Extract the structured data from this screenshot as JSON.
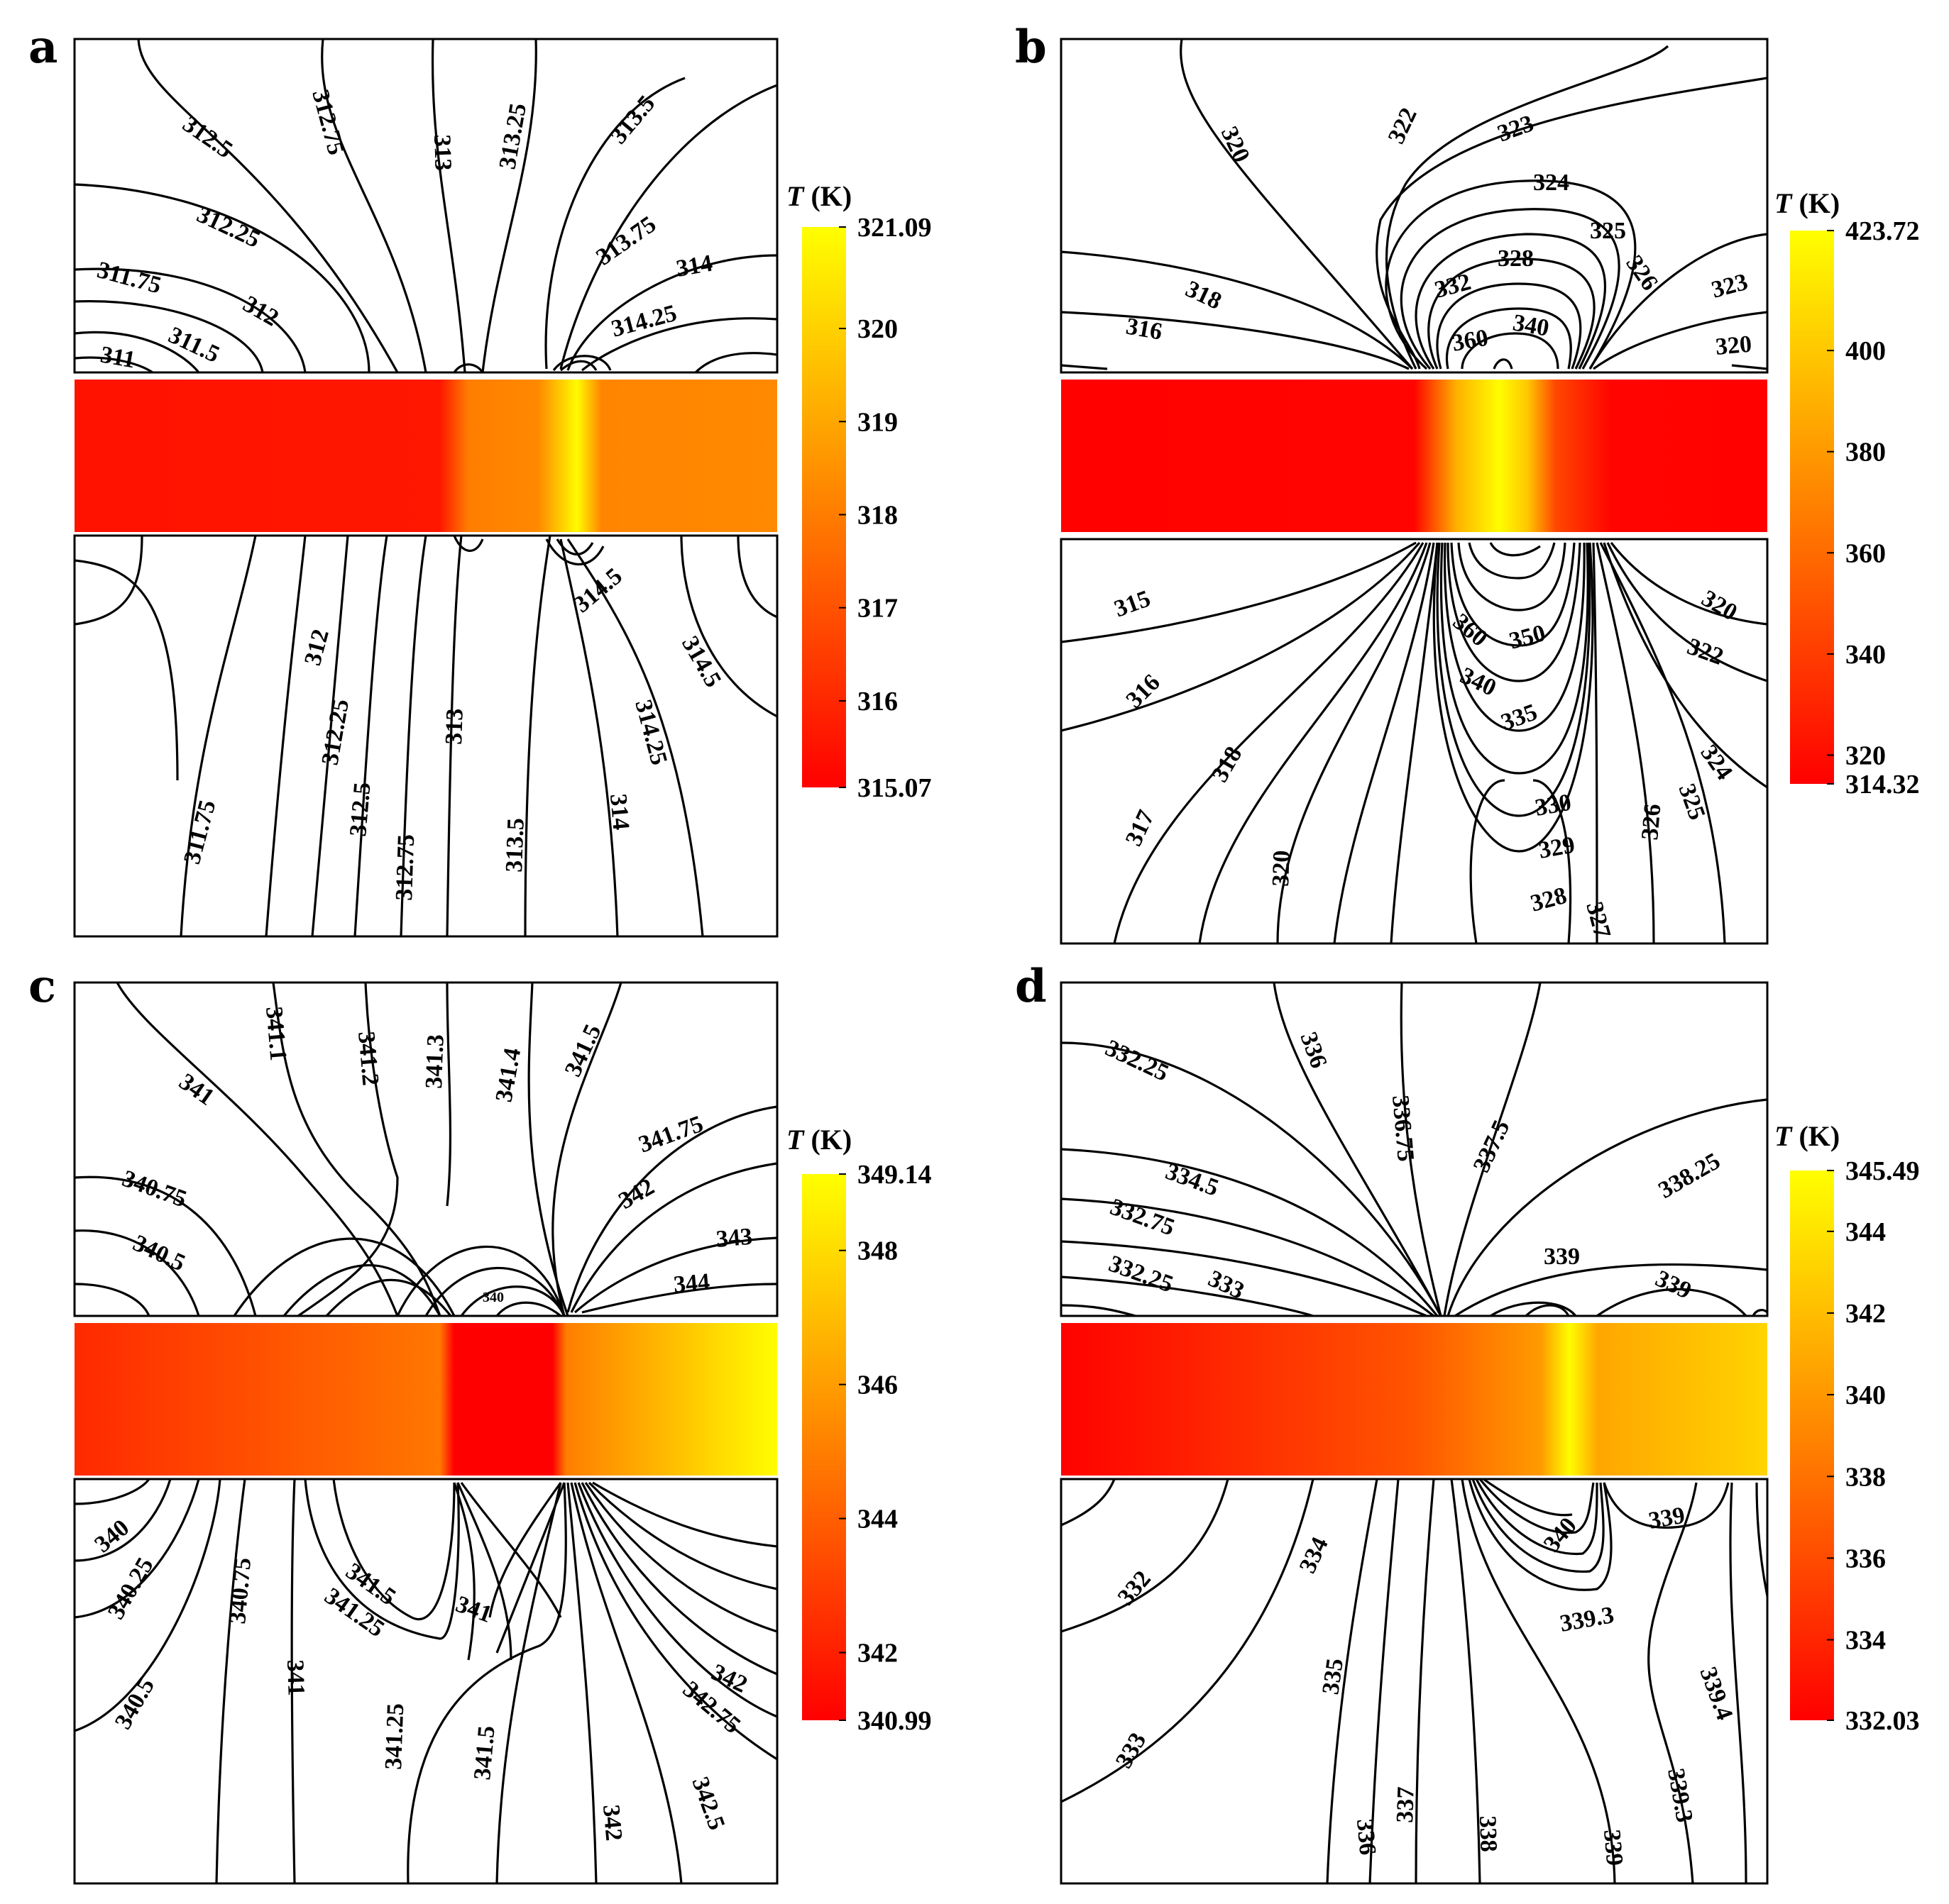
{
  "figure": {
    "units_label": "(K)",
    "units_symbol": "T"
  },
  "chart_data": [
    {
      "panel": "a",
      "type": "heatmap",
      "title": "",
      "colorbar": {
        "min": 315.07,
        "max": 321.09,
        "ticks": [
          "321.09",
          "320",
          "319",
          "318",
          "317",
          "316",
          "315.07"
        ],
        "tick_values": [
          321.09,
          320,
          319,
          318,
          317,
          316,
          315.07
        ],
        "colors": [
          "#ff0000",
          "#ff8000",
          "#ffff00"
        ]
      },
      "strip_profile": [
        [
          0,
          315.5
        ],
        [
          0.52,
          315.6
        ],
        [
          0.56,
          318.0
        ],
        [
          0.66,
          318.3
        ],
        [
          0.715,
          321.0
        ],
        [
          0.75,
          318.2
        ],
        [
          1,
          318.3
        ]
      ],
      "contour_labels_top": [
        "312.5",
        "312.75",
        "313",
        "313.25",
        "313.5",
        "313.75",
        "314",
        "314.25",
        "312.25",
        "311.75",
        "312",
        "311.5",
        "311"
      ],
      "contour_labels_bottom": [
        "314.5",
        "314.5",
        "312",
        "312.25",
        "313",
        "314.25",
        "312.5",
        "311.75",
        "312.75",
        "313.5",
        "314"
      ]
    },
    {
      "panel": "b",
      "type": "heatmap",
      "title": "",
      "colorbar": {
        "min": 314.32,
        "max": 423.72,
        "ticks": [
          "423.72",
          "400",
          "380",
          "360",
          "340",
          "320",
          "314.32"
        ],
        "tick_values": [
          423.72,
          400,
          380,
          360,
          340,
          320,
          314.32
        ],
        "colors": [
          "#ff0000",
          "#ff8000",
          "#ffff00"
        ]
      },
      "strip_profile": [
        [
          0,
          315
        ],
        [
          0.5,
          316
        ],
        [
          0.56,
          390
        ],
        [
          0.62,
          423
        ],
        [
          0.66,
          400
        ],
        [
          0.7,
          345
        ],
        [
          0.74,
          330
        ],
        [
          0.78,
          316
        ],
        [
          1,
          315
        ]
      ],
      "contour_labels_top": [
        "322",
        "323",
        "320",
        "324",
        "325",
        "328",
        "326",
        "323",
        "318",
        "332",
        "340",
        "316",
        "360",
        "320"
      ],
      "contour_labels_bottom": [
        "315",
        "360",
        "320",
        "350",
        "322",
        "316",
        "340",
        "335",
        "318",
        "324",
        "317",
        "330",
        "325",
        "329",
        "320",
        "326",
        "328",
        "327"
      ]
    },
    {
      "panel": "c",
      "type": "heatmap",
      "title": "",
      "colorbar": {
        "min": 340.99,
        "max": 349.14,
        "ticks": [
          "349.14",
          "348",
          "346",
          "344",
          "342",
          "340.99"
        ],
        "tick_values": [
          349.14,
          348,
          346,
          344,
          342,
          340.99
        ],
        "colors": [
          "#ff0000",
          "#ff8000",
          "#ffff00"
        ]
      },
      "strip_profile": [
        [
          0,
          342.3
        ],
        [
          0.52,
          344.8
        ],
        [
          0.54,
          341.0
        ],
        [
          0.68,
          341.0
        ],
        [
          0.7,
          345.0
        ],
        [
          1,
          349.1
        ]
      ],
      "contour_labels_top": [
        "341.1",
        "341.2",
        "341.3",
        "341.4",
        "341.5",
        "341",
        "341.75",
        "342",
        "340.75",
        "343",
        "340.5",
        "344",
        "340"
      ],
      "contour_labels_bottom": [
        "340",
        "340.75",
        "341.5",
        "340.25",
        "341.25",
        "341",
        "341",
        "340.5",
        "342",
        "342.75",
        "341.25",
        "341.5",
        "342",
        "342.5"
      ]
    },
    {
      "panel": "d",
      "type": "heatmap",
      "title": "",
      "colorbar": {
        "min": 332.03,
        "max": 345.49,
        "ticks": [
          "345.49",
          "344",
          "342",
          "340",
          "338",
          "336",
          "334",
          "332.03"
        ],
        "tick_values": [
          345.49,
          344,
          342,
          340,
          338,
          336,
          334,
          332.03
        ],
        "colors": [
          "#ff0000",
          "#ff8000",
          "#ffff00"
        ]
      },
      "strip_profile": [
        [
          0,
          332.1
        ],
        [
          0.5,
          336.5
        ],
        [
          0.68,
          340.2
        ],
        [
          0.72,
          345.4
        ],
        [
          0.76,
          340.8
        ],
        [
          1,
          343.2
        ]
      ],
      "contour_labels_top": [
        "336",
        "332.25",
        "336.75",
        "337.5",
        "338.25",
        "334.5",
        "332.75",
        "339",
        "332.25",
        "333",
        "339"
      ],
      "contour_labels_bottom": [
        "340",
        "339",
        "332",
        "334",
        "339.3",
        "335",
        "339.4",
        "333",
        "336",
        "337",
        "338",
        "339.3",
        "339"
      ]
    }
  ]
}
